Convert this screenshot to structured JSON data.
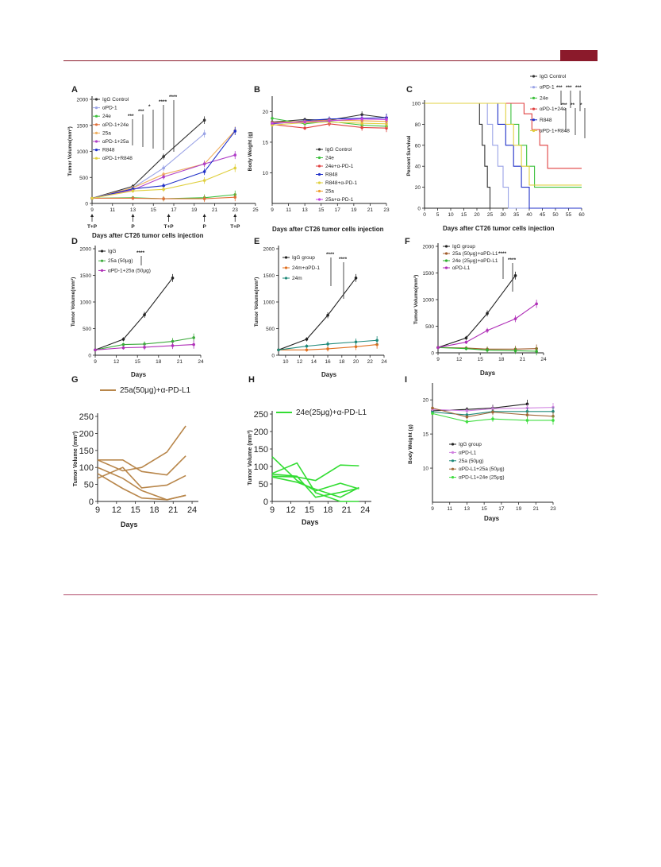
{
  "colors": {
    "header_accent": "#8b1a2b"
  },
  "chart_data": [
    {
      "panel": "A",
      "type": "line",
      "xlabel": "Days after CT26 tumor cells injection",
      "ylabel": "Tumor Volume(mm³)",
      "xlim": [
        9,
        25
      ],
      "ylim": [
        0,
        2000
      ],
      "xticks": [
        "9",
        "11",
        "13",
        "15",
        "17",
        "19",
        "21",
        "23",
        "25"
      ],
      "yticks": [
        "0",
        "500",
        "1000",
        "1500",
        "2000"
      ],
      "legend_position": "top-left",
      "annotations": [
        {
          "x": 9,
          "text": "T+P"
        },
        {
          "x": 13,
          "text": "P"
        },
        {
          "x": 16.5,
          "text": "T+P"
        },
        {
          "x": 20,
          "text": "P"
        },
        {
          "x": 23,
          "text": "T+P"
        }
      ],
      "significance": [
        "***",
        "***",
        "*",
        "****",
        "****"
      ],
      "series": [
        {
          "name": "IgG Control",
          "color": "#333333",
          "x": [
            9,
            13,
            16,
            20
          ],
          "values": [
            100,
            330,
            900,
            1600
          ]
        },
        {
          "name": "αPD-1",
          "color": "#9aa3e6",
          "x": [
            9,
            13,
            16,
            20
          ],
          "values": [
            100,
            300,
            680,
            1340
          ]
        },
        {
          "name": "24e",
          "color": "#3cc03c",
          "x": [
            9,
            13,
            16,
            20,
            23
          ],
          "values": [
            100,
            110,
            90,
            110,
            170
          ]
        },
        {
          "name": "αPD-1+24e",
          "color": "#e0703a",
          "x": [
            9,
            13,
            16,
            20,
            23
          ],
          "values": [
            100,
            100,
            90,
            90,
            120
          ]
        },
        {
          "name": "25a",
          "color": "#f0b060",
          "x": [
            9,
            13,
            16,
            20,
            23
          ],
          "values": [
            100,
            300,
            560,
            760,
            1400
          ]
        },
        {
          "name": "αPD-1+25a",
          "color": "#b040c8",
          "x": [
            9,
            13,
            16,
            20,
            23
          ],
          "values": [
            100,
            260,
            510,
            760,
            930
          ]
        },
        {
          "name": "R848",
          "color": "#2030c8",
          "x": [
            9,
            13,
            16,
            20,
            23
          ],
          "values": [
            100,
            280,
            340,
            610,
            1390
          ]
        },
        {
          "name": "αPD-1+R848",
          "color": "#e0d040",
          "x": [
            9,
            13,
            16,
            20,
            23
          ],
          "values": [
            100,
            240,
            270,
            440,
            680
          ]
        }
      ]
    },
    {
      "panel": "B",
      "type": "line",
      "xlabel": "Days after CT26 tumor cells injection",
      "ylabel": "Body Weight (g)",
      "xticks": [
        "9",
        "11",
        "13",
        "15",
        "17",
        "19",
        "21",
        "23"
      ],
      "yticks": [
        "10",
        "15",
        "20"
      ],
      "xlim": [
        9,
        23
      ],
      "ylim": [
        5,
        22
      ],
      "legend_position": "right",
      "series": [
        {
          "name": "IgG Control",
          "color": "#333333",
          "x": [
            9,
            13,
            16,
            20,
            23
          ],
          "values": [
            18.3,
            18.7,
            18.6,
            19.5,
            19.0
          ]
        },
        {
          "name": "24e",
          "color": "#3cc03c",
          "x": [
            9,
            13,
            16,
            20,
            23
          ],
          "values": [
            18.9,
            18.0,
            18.4,
            17.8,
            17.6
          ]
        },
        {
          "name": "24e+α-PD-1",
          "color": "#e04040",
          "x": [
            9,
            13,
            16,
            20,
            23
          ],
          "values": [
            17.9,
            17.3,
            18.0,
            17.4,
            17.3
          ]
        },
        {
          "name": "R848",
          "color": "#2030c8",
          "x": [
            9,
            13,
            16,
            20,
            23
          ],
          "values": [
            18.0,
            18.5,
            18.8,
            18.9,
            19.0
          ]
        },
        {
          "name": "R848+α-PD-1",
          "color": "#e0d040",
          "x": [
            9,
            13,
            16,
            20,
            23
          ],
          "values": [
            17.8,
            18.2,
            18.3,
            18.1,
            18.0
          ]
        },
        {
          "name": "25a",
          "color": "#f0a030",
          "x": [
            9,
            13,
            16,
            20,
            23
          ],
          "values": [
            18.2,
            18.4,
            18.6,
            18.5,
            18.4
          ]
        },
        {
          "name": "25a+α-PD-1",
          "color": "#c040e0",
          "x": [
            9,
            13,
            16,
            20,
            23
          ],
          "values": [
            18.1,
            18.3,
            18.5,
            18.8,
            18.7
          ]
        }
      ]
    },
    {
      "panel": "C",
      "type": "line",
      "xlabel": "Days after CT26 tumor cells injection",
      "ylabel": "Percent Survival",
      "xlim": [
        0,
        60
      ],
      "ylim": [
        0,
        100
      ],
      "xticks": [
        "0",
        "5",
        "10",
        "15",
        "20",
        "25",
        "30",
        "35",
        "40",
        "45",
        "50",
        "55",
        "60"
      ],
      "yticks": [
        "0",
        "20",
        "40",
        "60",
        "80",
        "100"
      ],
      "legend_position": "top-right",
      "significance": [
        "***",
        "***",
        "***",
        "***",
        "**",
        "*"
      ],
      "series": [
        {
          "name": "IgG Control",
          "color": "#333333",
          "x": [
            0,
            20,
            21,
            22,
            23,
            24,
            25,
            60
          ],
          "values": [
            100,
            100,
            80,
            60,
            40,
            20,
            0,
            0
          ]
        },
        {
          "name": "αPD-1",
          "color": "#9aa3e6",
          "x": [
            0,
            22,
            24,
            26,
            28,
            30,
            32,
            60
          ],
          "values": [
            100,
            100,
            80,
            60,
            40,
            20,
            0,
            0
          ]
        },
        {
          "name": "24e",
          "color": "#3cc03c",
          "x": [
            0,
            30,
            33,
            36,
            39,
            42,
            60
          ],
          "values": [
            100,
            100,
            80,
            60,
            40,
            20,
            20
          ]
        },
        {
          "name": "αPD-1+24e",
          "color": "#e04040",
          "x": [
            0,
            35,
            38,
            41,
            44,
            47,
            60
          ],
          "values": [
            100,
            100,
            90,
            75,
            60,
            38,
            38
          ]
        },
        {
          "name": "R848",
          "color": "#2030c8",
          "x": [
            0,
            25,
            28,
            31,
            34,
            37,
            40,
            60
          ],
          "values": [
            100,
            100,
            80,
            60,
            40,
            20,
            0,
            0
          ]
        },
        {
          "name": "αPD-1+R848",
          "color": "#e0d040",
          "x": [
            0,
            28,
            31,
            34,
            37,
            40,
            60
          ],
          "values": [
            100,
            100,
            80,
            60,
            40,
            22,
            22
          ]
        }
      ]
    },
    {
      "panel": "D",
      "type": "line",
      "xlabel": "Days",
      "ylabel": "Tumor Volume(mm³)",
      "xlim": [
        9,
        24
      ],
      "ylim": [
        0,
        2000
      ],
      "xticks": [
        "9",
        "12",
        "15",
        "18",
        "21",
        "24"
      ],
      "yticks": [
        "0",
        "500",
        "1000",
        "1500",
        "2000"
      ],
      "significance": [
        "****"
      ],
      "series": [
        {
          "name": "IgG",
          "color": "#222222",
          "x": [
            9,
            13,
            16,
            20
          ],
          "values": [
            100,
            300,
            760,
            1450
          ]
        },
        {
          "name": "25a (50μg)",
          "color": "#3caa3c",
          "x": [
            9,
            13,
            16,
            20,
            23
          ],
          "values": [
            100,
            200,
            210,
            260,
            330
          ]
        },
        {
          "name": "αPD-1+25a (50μg)",
          "color": "#b030b8",
          "x": [
            9,
            13,
            16,
            20,
            23
          ],
          "values": [
            100,
            140,
            150,
            180,
            200
          ]
        }
      ]
    },
    {
      "panel": "E",
      "type": "line",
      "xlabel": "Days",
      "ylabel": "Tumor Volume(mm³)",
      "xlim": [
        9,
        24
      ],
      "ylim": [
        0,
        2000
      ],
      "xticks": [
        "10",
        "12",
        "14",
        "16",
        "18",
        "20",
        "22",
        "24"
      ],
      "yticks": [
        "0",
        "500",
        "1000",
        "1500",
        "2000"
      ],
      "significance": [
        "****",
        "****"
      ],
      "series": [
        {
          "name": "IgG group",
          "color": "#222222",
          "x": [
            9,
            13,
            16,
            20
          ],
          "values": [
            100,
            300,
            750,
            1450
          ]
        },
        {
          "name": "24m+αPD-1",
          "color": "#e07020",
          "x": [
            9,
            13,
            16,
            20,
            23
          ],
          "values": [
            100,
            100,
            120,
            160,
            200
          ]
        },
        {
          "name": "24m",
          "color": "#208a7a",
          "x": [
            9,
            13,
            16,
            20,
            23
          ],
          "values": [
            100,
            170,
            210,
            250,
            280
          ]
        }
      ]
    },
    {
      "panel": "F",
      "type": "line",
      "xlabel": "Days",
      "ylabel": "Tumor Volume(mm³)",
      "xlim": [
        9,
        24
      ],
      "ylim": [
        0,
        2000
      ],
      "xticks": [
        "9",
        "12",
        "15",
        "18",
        "21",
        "24"
      ],
      "yticks": [
        "0",
        "500",
        "1000",
        "1500",
        "2000"
      ],
      "significance": [
        "****",
        "****"
      ],
      "series": [
        {
          "name": "IgG group",
          "color": "#222222",
          "x": [
            9,
            13,
            16,
            20
          ],
          "values": [
            100,
            280,
            740,
            1450
          ]
        },
        {
          "name": "25a (50μg)+αPD-L1",
          "color": "#a05a2a",
          "x": [
            9,
            13,
            16,
            20,
            23
          ],
          "values": [
            100,
            90,
            70,
            70,
            80
          ]
        },
        {
          "name": "24e (25μg)+αPD-L1",
          "color": "#30b030",
          "x": [
            9,
            13,
            16,
            20,
            23
          ],
          "values": [
            100,
            80,
            50,
            40,
            30
          ]
        },
        {
          "name": "αPD-L1",
          "color": "#b030b8",
          "x": [
            9,
            13,
            16,
            20,
            23
          ],
          "values": [
            100,
            200,
            420,
            640,
            920
          ]
        }
      ]
    },
    {
      "panel": "G",
      "type": "line",
      "xlabel": "Days",
      "ylabel": "Tumor Volume (mm³)",
      "xlim": [
        9,
        25
      ],
      "ylim": [
        0,
        250
      ],
      "xticks": [
        "9",
        "12",
        "15",
        "18",
        "21",
        "24"
      ],
      "yticks": [
        "0",
        "50",
        "100",
        "150",
        "200",
        "250"
      ],
      "legend_position": "top",
      "legend": "25a(50μg)+α-PD-L1",
      "color": "#b8864a",
      "series": [
        {
          "x": [
            9,
            13,
            16,
            20,
            23
          ],
          "values": [
            122,
            90,
            100,
            145,
            222
          ]
        },
        {
          "x": [
            9,
            13,
            16,
            20,
            23
          ],
          "values": [
            122,
            122,
            88,
            78,
            134
          ]
        },
        {
          "x": [
            9,
            13,
            16,
            20,
            23
          ],
          "values": [
            100,
            68,
            32,
            5,
            18
          ]
        },
        {
          "x": [
            9,
            13,
            16,
            20,
            23
          ],
          "values": [
            82,
            38,
            10,
            5,
            18
          ]
        },
        {
          "x": [
            9,
            13,
            16,
            20,
            23
          ],
          "values": [
            68,
            100,
            40,
            48,
            76
          ]
        }
      ]
    },
    {
      "panel": "H",
      "type": "line",
      "xlabel": "Days",
      "ylabel": "Tumor Volume (mm³)",
      "xlim": [
        9,
        25
      ],
      "ylim": [
        0,
        250
      ],
      "xticks": [
        "9",
        "12",
        "15",
        "18",
        "21",
        "24"
      ],
      "yticks": [
        "0",
        "50",
        "100",
        "150",
        "200",
        "250"
      ],
      "legend_position": "top",
      "legend": "24e(25μg)+α-PD-L1",
      "color": "#33dd33",
      "series": [
        {
          "x": [
            9,
            13,
            16,
            20,
            23
          ],
          "values": [
            128,
            60,
            30,
            52,
            36
          ]
        },
        {
          "x": [
            9,
            13,
            16,
            20,
            23
          ],
          "values": [
            80,
            110,
            25,
            0,
            0
          ]
        },
        {
          "x": [
            9,
            13,
            16,
            20,
            23
          ],
          "values": [
            72,
            70,
            60,
            104,
            102
          ]
        },
        {
          "x": [
            9,
            13,
            16,
            20,
            23
          ],
          "values": [
            70,
            55,
            35,
            12,
            40
          ]
        },
        {
          "x": [
            9,
            13,
            16,
            20,
            23
          ],
          "values": [
            78,
            72,
            12,
            26,
            38
          ]
        }
      ]
    },
    {
      "panel": "I",
      "type": "line",
      "xlabel": "Days",
      "ylabel": "Body Weight (g)",
      "xlim": [
        9,
        23
      ],
      "ylim": [
        5,
        22
      ],
      "xticks": [
        "9",
        "11",
        "13",
        "15",
        "17",
        "19",
        "21",
        "23"
      ],
      "yticks": [
        "10",
        "15",
        "20"
      ],
      "legend_position": "center",
      "series": [
        {
          "name": "IgG group",
          "color": "#222222",
          "x": [
            9,
            13,
            16,
            20
          ],
          "values": [
            18.4,
            18.6,
            18.8,
            19.4
          ]
        },
        {
          "name": "αPD-L1",
          "color": "#d080e0",
          "x": [
            9,
            13,
            16,
            20,
            23
          ],
          "values": [
            18.6,
            18.4,
            18.7,
            18.8,
            18.9
          ]
        },
        {
          "name": "25a (50μg)",
          "color": "#208a7a",
          "x": [
            9,
            13,
            16,
            20,
            23
          ],
          "values": [
            18.2,
            17.8,
            18.3,
            18.3,
            18.3
          ]
        },
        {
          "name": "αPD-L1+25a (50μg)",
          "color": "#a06838",
          "x": [
            9,
            13,
            16,
            20,
            23
          ],
          "values": [
            18.8,
            17.5,
            18.2,
            17.8,
            17.6
          ]
        },
        {
          "name": "αPD-L1+24e (25μg)",
          "color": "#40dd40",
          "x": [
            9,
            13,
            16,
            20,
            23
          ],
          "values": [
            18.0,
            16.8,
            17.2,
            17.0,
            17.0
          ]
        }
      ]
    }
  ]
}
